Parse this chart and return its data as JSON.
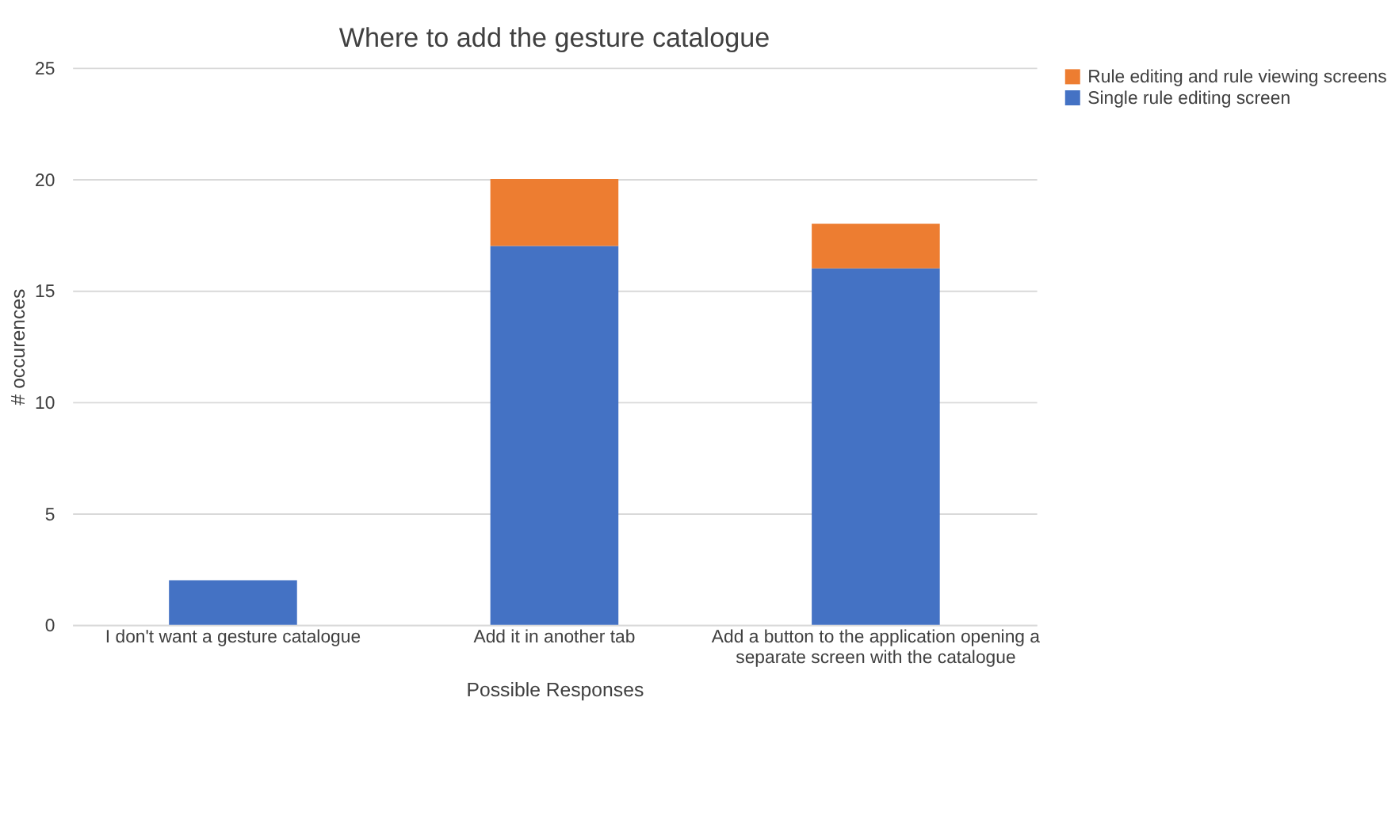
{
  "chart_data": {
    "type": "bar",
    "title": "Where to add the gesture catalogue",
    "xlabel": "Possible Responses",
    "ylabel": "# occurences",
    "categories": [
      "I don't want a gesture catalogue",
      "Add it in another tab",
      "Add a button to the application opening a separate screen with the catalogue"
    ],
    "stacked": true,
    "series": [
      {
        "name": "Single rule editing screen",
        "color": "#4472c4",
        "values": [
          2,
          17,
          16
        ]
      },
      {
        "name": "Rule editing and rule viewing screens",
        "color": "#ed7d31",
        "values": [
          0,
          3,
          2
        ]
      }
    ],
    "ylim": [
      0,
      25
    ],
    "yticks": [
      0,
      5,
      10,
      15,
      20,
      25
    ],
    "grid": "y",
    "legend": "right"
  }
}
